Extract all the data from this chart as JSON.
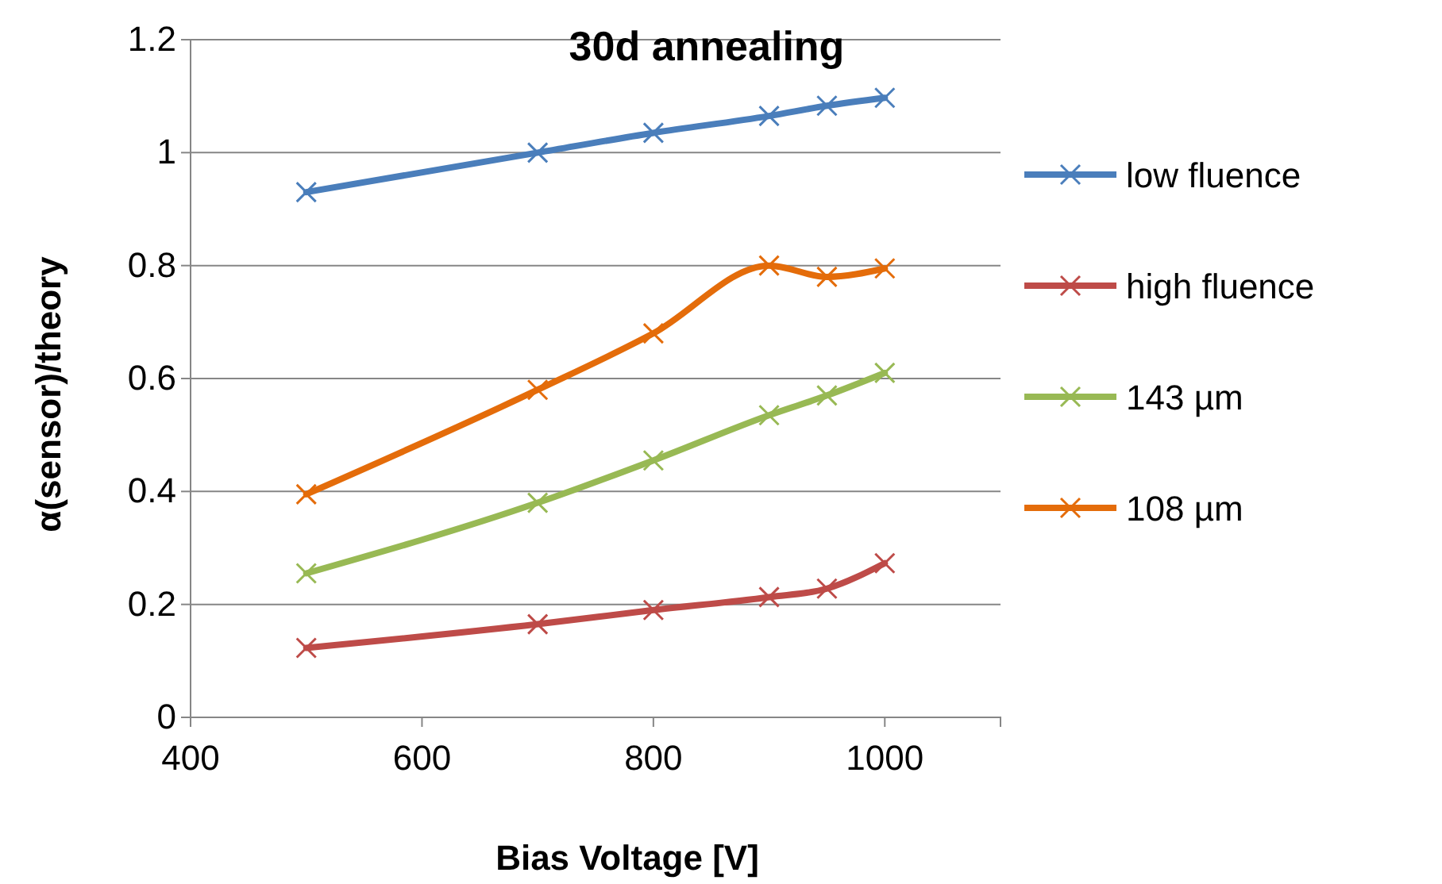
{
  "chart_data": {
    "type": "line",
    "title": "30d annealing",
    "xlabel": "Bias Voltage [V]",
    "ylabel": "α(sensor)/theory",
    "x": [
      500,
      700,
      800,
      900,
      950,
      1000
    ],
    "xlim": [
      400,
      1100
    ],
    "xticks": [
      400,
      600,
      800,
      1000
    ],
    "ylim": [
      0,
      1.2
    ],
    "yticks": [
      0,
      0.2,
      0.4,
      0.6,
      0.8,
      1,
      1.2
    ],
    "grid": "y",
    "legend": "right",
    "marker": "cross",
    "line_style": "solid",
    "series": [
      {
        "name": "low fluence",
        "color": "#4a7ebb",
        "values": [
          0.93,
          1.0,
          1.035,
          1.065,
          1.083,
          1.097
        ]
      },
      {
        "name": "high fluence",
        "color": "#be4b48",
        "values": [
          0.123,
          0.165,
          0.19,
          0.213,
          0.228,
          0.273
        ]
      },
      {
        "name": "143 µm",
        "color": "#98b954",
        "values": [
          0.255,
          0.38,
          0.455,
          0.535,
          0.57,
          0.61
        ]
      },
      {
        "name": "108 µm",
        "color": "#e46c0a",
        "values": [
          0.395,
          0.58,
          0.68,
          0.8,
          0.78,
          0.795
        ]
      }
    ]
  }
}
